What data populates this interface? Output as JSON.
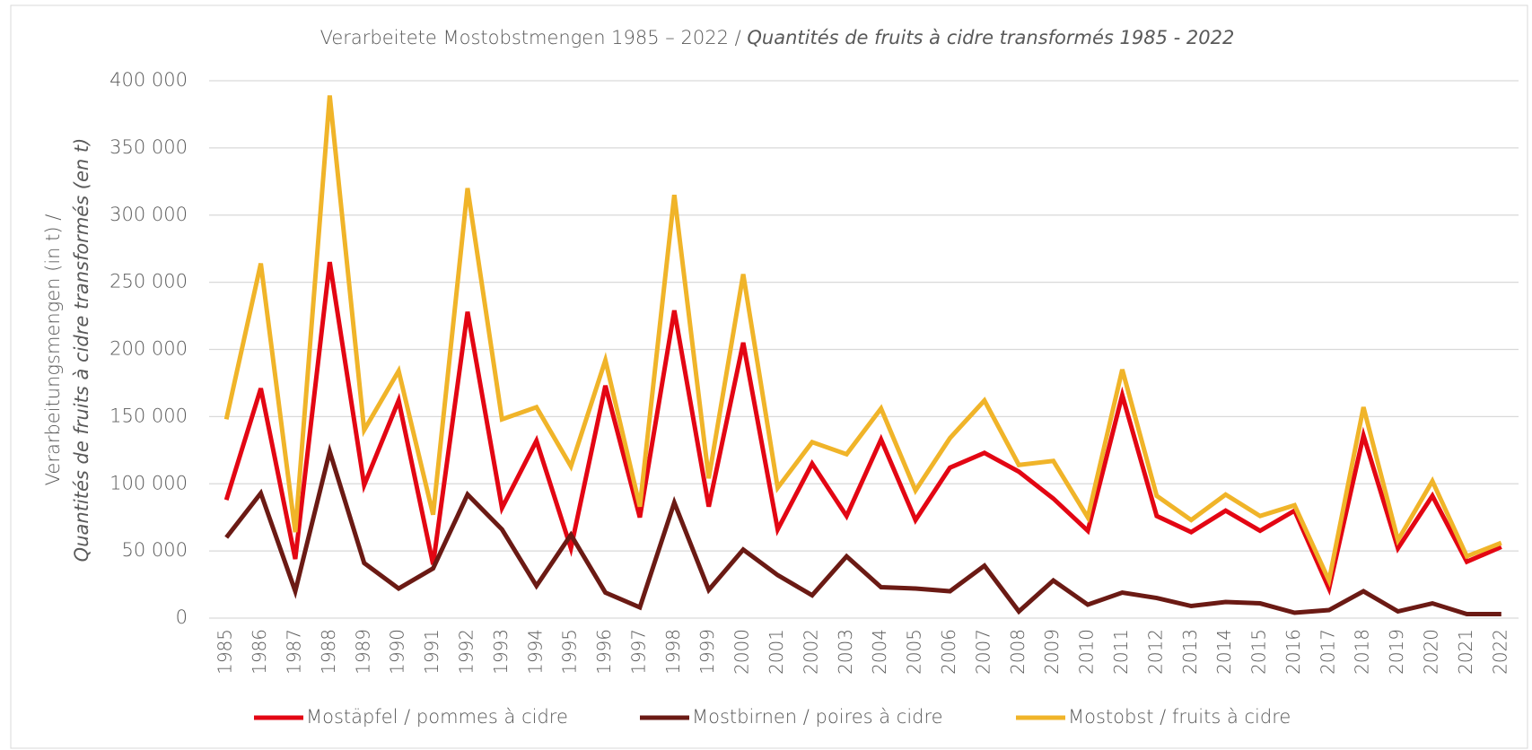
{
  "chart_data": {
    "type": "line",
    "title": "Verarbeitete Mostobstmengen 1985 – 2022 /",
    "title_italic": "Quantités de fruits à cidre transformés 1985 - 2022",
    "y_label": "Verarbeitungsmengen (in t) /",
    "y_label_italic": "Quantités de fruits à cidre transformés (en t)",
    "categories": [
      "1985",
      "1986",
      "1987",
      "1988",
      "1989",
      "1990",
      "1991",
      "1992",
      "1993",
      "1994",
      "1995",
      "1996",
      "1997",
      "1998",
      "1999",
      "2000",
      "2001",
      "2002",
      "2003",
      "2004",
      "2005",
      "2006",
      "2007",
      "2008",
      "2009",
      "2010",
      "2011",
      "2012",
      "2013",
      "2014",
      "2015",
      "2016",
      "2017",
      "2018",
      "2019",
      "2020",
      "2021",
      "2022"
    ],
    "series": [
      {
        "name": "Mostäpfel / pommes à cidre",
        "color": "#e30613",
        "values": [
          88000,
          171000,
          44000,
          265000,
          99000,
          162000,
          40000,
          228000,
          82000,
          132000,
          52000,
          173000,
          75000,
          229000,
          83000,
          205000,
          66000,
          115000,
          76000,
          133000,
          73000,
          112000,
          123000,
          109000,
          89000,
          65000,
          166000,
          76000,
          64000,
          80000,
          65000,
          80000,
          22000,
          136000,
          52000,
          91000,
          42000,
          53000
        ]
      },
      {
        "name": "Mostbirnen / poires à cidre",
        "color": "#6b1a14",
        "values": [
          60000,
          93000,
          20000,
          124000,
          41000,
          22000,
          37000,
          92000,
          66000,
          24000,
          62000,
          19000,
          8000,
          86000,
          21000,
          51000,
          32000,
          17000,
          46000,
          23000,
          22000,
          20000,
          39000,
          5000,
          28000,
          10000,
          19000,
          15000,
          9000,
          12000,
          11000,
          4000,
          6000,
          20000,
          5000,
          11000,
          3000,
          3000
        ]
      },
      {
        "name": "Mostobst / fruits à cidre",
        "color": "#f0b429",
        "values": [
          148000,
          264000,
          64000,
          389000,
          140000,
          184000,
          77000,
          320000,
          148000,
          157000,
          113000,
          192000,
          83000,
          315000,
          104000,
          256000,
          97000,
          131000,
          122000,
          156000,
          95000,
          134000,
          162000,
          114000,
          117000,
          75000,
          185000,
          91000,
          73000,
          92000,
          76000,
          84000,
          28000,
          157000,
          58000,
          102000,
          46000,
          56000
        ]
      }
    ],
    "ylim": [
      0,
      400000
    ],
    "yticks": [
      0,
      {
        "value": 50000,
        "label": "50 000"
      },
      {
        "value": 100000,
        "label": "100 000"
      },
      {
        "value": 150000,
        "label": "150 000"
      },
      {
        "value": 200000,
        "label": "200 000"
      },
      {
        "value": 250000,
        "label": "250 000"
      },
      {
        "value": 300000,
        "label": "300 000"
      },
      {
        "value": 350000,
        "label": "350 000"
      },
      {
        "value": 400000,
        "label": "400 000"
      }
    ],
    "grid": true,
    "legend": "bottom"
  }
}
